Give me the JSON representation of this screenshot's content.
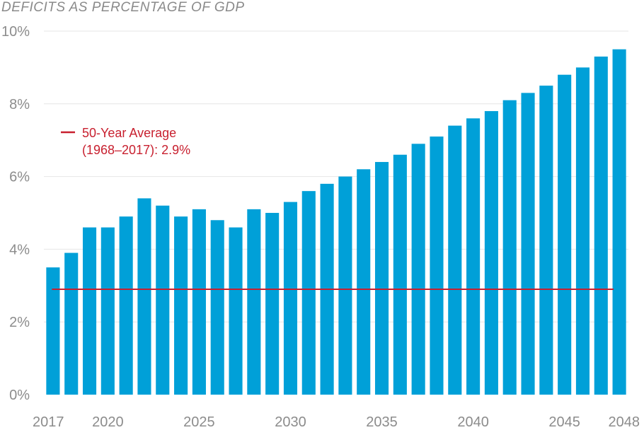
{
  "chart_data": {
    "type": "bar",
    "title": "DEFICITS AS PERCENTAGE OF GDP",
    "xlabel": "",
    "ylabel": "",
    "ylim": [
      0,
      10
    ],
    "yticks": [
      0,
      2,
      4,
      6,
      8,
      10
    ],
    "ytick_labels": [
      "0%",
      "2%",
      "4%",
      "6%",
      "8%",
      "10%"
    ],
    "xtick_labels": [
      {
        "year": 2017,
        "label": "2017"
      },
      {
        "year": 2020,
        "label": "2020"
      },
      {
        "year": 2025,
        "label": "2025"
      },
      {
        "year": 2030,
        "label": "2030"
      },
      {
        "year": 2035,
        "label": "2035"
      },
      {
        "year": 2040,
        "label": "2040"
      },
      {
        "year": 2045,
        "label": "2045"
      },
      {
        "year": 2048,
        "label": "2048"
      }
    ],
    "categories": [
      2017,
      2018,
      2019,
      2020,
      2021,
      2022,
      2023,
      2024,
      2025,
      2026,
      2027,
      2028,
      2029,
      2030,
      2031,
      2032,
      2033,
      2034,
      2035,
      2036,
      2037,
      2038,
      2039,
      2040,
      2041,
      2042,
      2043,
      2044,
      2045,
      2046,
      2047,
      2048
    ],
    "values": [
      3.5,
      3.9,
      4.6,
      4.6,
      4.9,
      5.4,
      5.2,
      4.9,
      5.1,
      4.8,
      4.6,
      5.1,
      5.0,
      5.3,
      5.6,
      5.8,
      6.0,
      6.2,
      6.4,
      6.6,
      6.9,
      7.1,
      7.4,
      7.6,
      7.8,
      8.1,
      8.3,
      8.5,
      8.8,
      9.0,
      9.3,
      9.5
    ],
    "bar_color": "#00a0d8",
    "reference_line": {
      "value": 2.9,
      "color": "#c8202f",
      "label_line1": "50-Year Average",
      "label_line2": "(1968–2017): 2.9%"
    },
    "grid": true,
    "gridline_color": "#e6e6e6"
  }
}
